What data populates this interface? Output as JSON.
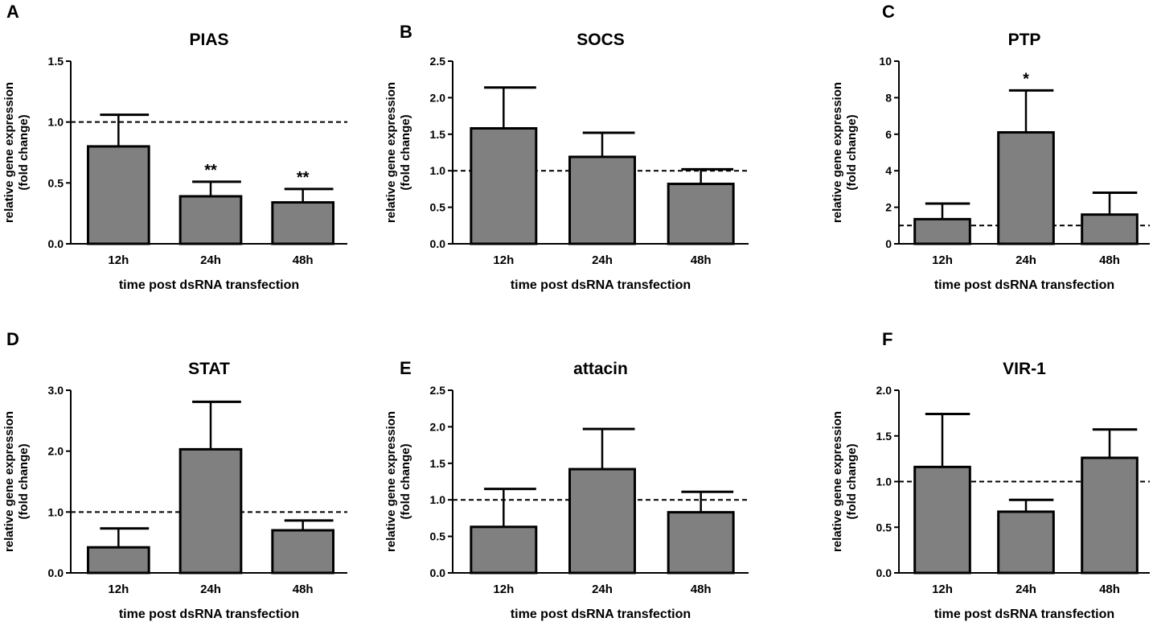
{
  "chart_data": [
    {
      "panel": "A",
      "type": "bar",
      "title": "PIAS",
      "categories": [
        "12h",
        "24h",
        "48h"
      ],
      "values": [
        0.8,
        0.39,
        0.34
      ],
      "error_upper": [
        1.06,
        0.51,
        0.45
      ],
      "significance": [
        "",
        "**",
        "**"
      ],
      "ylim": [
        0,
        1.5
      ],
      "yticks": [
        "0.0",
        "0.5",
        "1.0",
        "1.5"
      ],
      "ytick_values": [
        0,
        0.5,
        1.0,
        1.5
      ],
      "reference_line": 1.0,
      "xlabel": "time post dsRNA transfection",
      "ylabel": [
        "relative gene expression",
        "(fold change)"
      ]
    },
    {
      "panel": "B",
      "type": "bar",
      "title": "SOCS",
      "categories": [
        "12h",
        "24h",
        "48h"
      ],
      "values": [
        1.58,
        1.19,
        0.82
      ],
      "error_upper": [
        2.14,
        1.52,
        1.02
      ],
      "significance": [
        "",
        "",
        ""
      ],
      "ylim": [
        0,
        2.5
      ],
      "yticks": [
        "0.0",
        "0.5",
        "1.0",
        "1.5",
        "2.0",
        "2.5"
      ],
      "ytick_values": [
        0,
        0.5,
        1,
        1.5,
        2,
        2.5
      ],
      "reference_line": 1.0,
      "xlabel": "time post dsRNA transfection",
      "ylabel": [
        "relative gene expression",
        "(fold change)"
      ]
    },
    {
      "panel": "C",
      "type": "bar",
      "title": "PTP",
      "categories": [
        "12h",
        "24h",
        "48h"
      ],
      "values": [
        1.35,
        6.1,
        1.6
      ],
      "error_upper": [
        2.2,
        8.4,
        2.8
      ],
      "significance": [
        "",
        "*",
        ""
      ],
      "ylim": [
        0,
        10
      ],
      "yticks": [
        "0",
        "2",
        "4",
        "6",
        "8",
        "10"
      ],
      "ytick_values": [
        0,
        2,
        4,
        6,
        8,
        10
      ],
      "reference_line": 1.0,
      "xlabel": "time post dsRNA transfection",
      "ylabel": [
        "relative gene expression",
        "(fold change)"
      ]
    },
    {
      "panel": "D",
      "type": "bar",
      "title": "STAT",
      "categories": [
        "12h",
        "24h",
        "48h"
      ],
      "values": [
        0.42,
        2.03,
        0.7
      ],
      "error_upper": [
        0.73,
        2.81,
        0.86
      ],
      "significance": [
        "",
        "",
        ""
      ],
      "ylim": [
        0,
        3.0
      ],
      "yticks": [
        "0.0",
        "1.0",
        "2.0",
        "3.0"
      ],
      "ytick_values": [
        0,
        1,
        2,
        3
      ],
      "reference_line": 1.0,
      "xlabel": "time post dsRNA transfection",
      "ylabel": [
        "relative gene expression",
        "(fold change)"
      ]
    },
    {
      "panel": "E",
      "type": "bar",
      "title": "attacin",
      "categories": [
        "12h",
        "24h",
        "48h"
      ],
      "values": [
        0.63,
        1.42,
        0.83
      ],
      "error_upper": [
        1.15,
        1.97,
        1.11
      ],
      "significance": [
        "",
        "",
        ""
      ],
      "ylim": [
        0,
        2.5
      ],
      "yticks": [
        "0.0",
        "0.5",
        "1.0",
        "1.5",
        "2.0",
        "2.5"
      ],
      "ytick_values": [
        0,
        0.5,
        1,
        1.5,
        2,
        2.5
      ],
      "reference_line": 1.0,
      "xlabel": "time post dsRNA transfection",
      "ylabel": [
        "relative gene expression",
        "(fold change)"
      ]
    },
    {
      "panel": "F",
      "type": "bar",
      "title": "VIR-1",
      "categories": [
        "12h",
        "24h",
        "48h"
      ],
      "values": [
        1.16,
        0.67,
        1.26
      ],
      "error_upper": [
        1.74,
        0.8,
        1.57
      ],
      "significance": [
        "",
        "",
        ""
      ],
      "ylim": [
        0,
        2.0
      ],
      "yticks": [
        "0.0",
        "0.5",
        "1.0",
        "1.5",
        "2.0"
      ],
      "ytick_values": [
        0,
        0.5,
        1,
        1.5,
        2
      ],
      "reference_line": 1.0,
      "xlabel": "time post dsRNA transfection",
      "ylabel": [
        "relative gene expression",
        "(fold change)"
      ]
    }
  ],
  "colors": {
    "bar": "#808080",
    "stroke": "#000000"
  }
}
